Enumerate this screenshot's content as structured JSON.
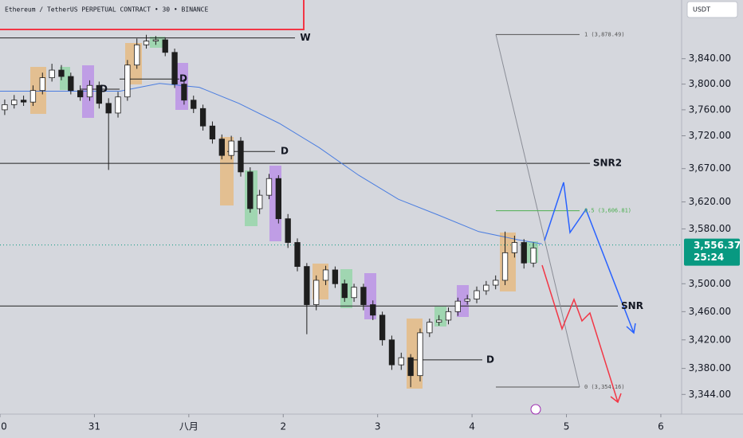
{
  "chart_data": {
    "type": "candlestick",
    "title": "Ethereum / TetherUS PERPETUAL CONTRACT • 30 • BINANCE",
    "currency": "USDT",
    "yscale": "log",
    "up_color": "#ffffff",
    "down_color": "#1e1e1e",
    "wick_color": "#1e1e1e",
    "x": [
      0.05,
      0.15,
      0.25,
      0.35,
      0.45,
      0.55,
      0.65,
      0.75,
      0.85,
      0.95,
      1.05,
      1.15,
      1.25,
      1.35,
      1.45,
      1.55,
      1.65,
      1.75,
      1.85,
      1.95,
      2.05,
      2.15,
      2.25,
      2.35,
      2.45,
      2.55,
      2.65,
      2.75,
      2.85,
      2.95,
      3.05,
      3.15,
      3.25,
      3.35,
      3.45,
      3.55,
      3.65,
      3.75,
      3.85,
      3.95,
      4.05,
      4.15,
      4.25,
      4.35,
      4.45,
      4.55,
      4.65,
      4.75,
      4.85,
      4.95,
      5.05,
      5.15,
      5.25,
      5.35,
      5.45,
      5.55,
      5.65
    ],
    "open": [
      3760,
      3768,
      3775,
      3772,
      3790,
      3810,
      3822,
      3812,
      3790,
      3780,
      3798,
      3770,
      3755,
      3780,
      3830,
      3862,
      3868,
      3870,
      3850,
      3800,
      3775,
      3762,
      3735,
      3715,
      3690,
      3712,
      3665,
      3610,
      3630,
      3655,
      3595,
      3560,
      3525,
      3470,
      3505,
      3520,
      3500,
      3480,
      3495,
      3470,
      3455,
      3420,
      3385,
      3395,
      3370,
      3430,
      3445,
      3448,
      3460,
      3475,
      3478,
      3490,
      3498,
      3505,
      3545,
      3560,
      3530
    ],
    "high": [
      3776,
      3783,
      3782,
      3798,
      3818,
      3832,
      3830,
      3818,
      3798,
      3806,
      3804,
      3778,
      3788,
      3838,
      3872,
      3878,
      3876,
      3874,
      3856,
      3808,
      3782,
      3768,
      3742,
      3722,
      3720,
      3718,
      3672,
      3638,
      3662,
      3660,
      3602,
      3566,
      3530,
      3512,
      3526,
      3525,
      3506,
      3500,
      3500,
      3476,
      3460,
      3426,
      3402,
      3400,
      3436,
      3450,
      3455,
      3466,
      3480,
      3484,
      3496,
      3504,
      3512,
      3576,
      3570,
      3565,
      3560
    ],
    "low": [
      3752,
      3762,
      3766,
      3766,
      3784,
      3804,
      3806,
      3784,
      3774,
      3774,
      3762,
      3668,
      3748,
      3774,
      3824,
      3856,
      3862,
      3844,
      3794,
      3768,
      3755,
      3728,
      3708,
      3684,
      3684,
      3658,
      3604,
      3602,
      3624,
      3588,
      3552,
      3518,
      3428,
      3462,
      3498,
      3494,
      3474,
      3474,
      3462,
      3448,
      3412,
      3378,
      3378,
      3354,
      3362,
      3424,
      3440,
      3442,
      3454,
      3470,
      3472,
      3484,
      3492,
      3498,
      3538,
      3522,
      3524
    ],
    "close": [
      3768,
      3775,
      3772,
      3790,
      3810,
      3822,
      3812,
      3790,
      3780,
      3798,
      3770,
      3755,
      3780,
      3830,
      3862,
      3868,
      3870,
      3850,
      3800,
      3775,
      3762,
      3735,
      3715,
      3690,
      3712,
      3665,
      3610,
      3630,
      3655,
      3595,
      3560,
      3525,
      3470,
      3505,
      3520,
      3500,
      3480,
      3495,
      3470,
      3455,
      3420,
      3385,
      3395,
      3370,
      3430,
      3445,
      3448,
      3460,
      3475,
      3478,
      3490,
      3498,
      3505,
      3545,
      3560,
      3530,
      3552
    ],
    "ma": {
      "color": "#4a7de0",
      "x": [
        0,
        1.27,
        1.69,
        2.11,
        2.53,
        2.96,
        3.38,
        3.8,
        4.22,
        4.65,
        5.07,
        5.49,
        5.74
      ],
      "values": [
        3789,
        3789,
        3801,
        3795,
        3770,
        3739,
        3702,
        3660,
        3624,
        3600,
        3576,
        3564,
        3558
      ]
    },
    "xlim": [
      0,
      7.22
    ],
    "xticks": [
      0,
      {
        "value": 1,
        "label": "31"
      },
      {
        "value": 2,
        "label": "八月"
      },
      {
        "value": 3,
        "label": "2"
      },
      {
        "value": 4,
        "label": "3"
      },
      {
        "value": 5,
        "label": "4"
      },
      {
        "value": 6,
        "label": "5"
      },
      {
        "value": 7,
        "label": "6"
      }
    ],
    "ylim": [
      3317,
      3934
    ],
    "yticks": [
      {
        "value": 3344,
        "label": "3,344.00"
      },
      {
        "value": 3380,
        "label": "3,380.00"
      },
      {
        "value": 3420,
        "label": "3,420.00"
      },
      {
        "value": 3460,
        "label": "3,460.00"
      },
      {
        "value": 3500,
        "label": "3,500.00"
      },
      {
        "value": 3580,
        "label": "3,580.00"
      },
      {
        "value": 3620,
        "label": "3,620.00"
      },
      {
        "value": 3670,
        "label": "3,670.00"
      },
      {
        "value": 3720,
        "label": "3,720.00"
      },
      {
        "value": 3760,
        "label": "3,760.00"
      },
      {
        "value": 3800,
        "label": "3,800.00"
      },
      {
        "value": 3840,
        "label": "3,840.00"
      }
    ],
    "levels": [
      {
        "label": "W",
        "value": 3873
      },
      {
        "label": "D",
        "value": 3792
      },
      {
        "label": "D",
        "value": 3808
      },
      {
        "label": "D",
        "value": 3696
      },
      {
        "label": "SNR2",
        "value": 3678
      },
      {
        "label": "SNR",
        "value": 3468
      },
      {
        "label": "D",
        "value": 3392
      }
    ],
    "fib": [
      {
        "value": 3878.49,
        "label": "1 (3,878.49)",
        "color": "#555555"
      },
      {
        "value": 3606.81,
        "label": "0.5 (3,606.81)",
        "color": "#4caf50"
      },
      {
        "value": 3354.16,
        "label": "0 (3,354.16)",
        "color": "#555555"
      }
    ],
    "last_price": {
      "value": 3556.37,
      "label": "3,556.37",
      "countdown": "25:24",
      "color": "#089981"
    }
  }
}
